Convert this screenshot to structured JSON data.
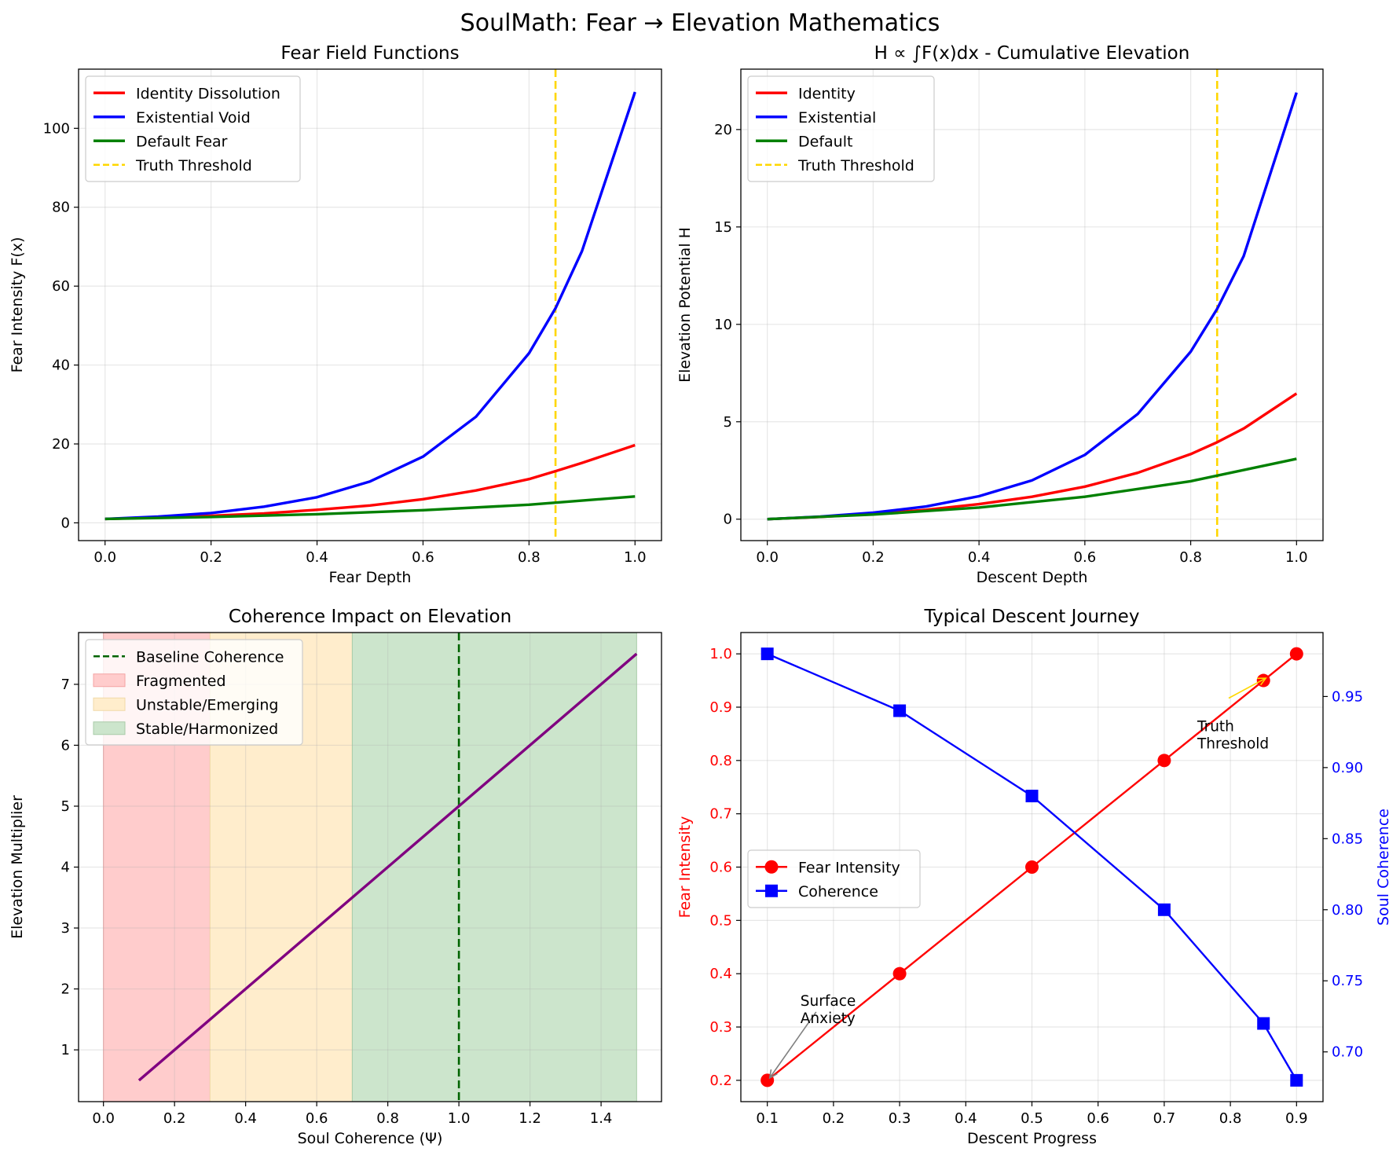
{
  "figure_title": "SoulMath: Fear → Elevation Mathematics",
  "chart_data": [
    {
      "type": "line",
      "title": "Fear Field Functions",
      "xlabel": "Fear Depth",
      "ylabel": "Fear Intensity F(x)",
      "xlim": [
        -0.05,
        1.05
      ],
      "ylim": [
        -4.5,
        115
      ],
      "xticks": [
        "0.0",
        "0.2",
        "0.4",
        "0.6",
        "0.8",
        "1.0"
      ],
      "yticks": [
        "0",
        "20",
        "40",
        "60",
        "80",
        "100"
      ],
      "grid": true,
      "legend_position": "upper-left",
      "series": [
        {
          "name": "Identity Dissolution",
          "color": "#ff0000",
          "x": [
            0,
            0.1,
            0.2,
            0.3,
            0.4,
            0.5,
            0.6,
            0.7,
            0.8,
            0.85,
            0.9,
            1.0
          ],
          "y": [
            1,
            1.35,
            1.8,
            2.4,
            3.3,
            4.4,
            6.0,
            8.2,
            11.1,
            13.1,
            15.2,
            19.7
          ]
        },
        {
          "name": "Existential Void",
          "color": "#0000ff",
          "x": [
            0,
            0.1,
            0.2,
            0.3,
            0.4,
            0.5,
            0.6,
            0.7,
            0.8,
            0.85,
            0.9,
            1.0
          ],
          "y": [
            1,
            1.6,
            2.5,
            4.1,
            6.5,
            10.5,
            16.8,
            26.9,
            43.0,
            54.4,
            68.9,
            109.2
          ]
        },
        {
          "name": "Default Fear",
          "color": "#008000",
          "x": [
            0,
            0.2,
            0.4,
            0.6,
            0.8,
            1.0
          ],
          "y": [
            1,
            1.5,
            2.2,
            3.2,
            4.6,
            6.7
          ]
        }
      ],
      "vline": {
        "name": "Truth Threshold",
        "x": 0.85,
        "color": "#ffd700"
      }
    },
    {
      "type": "line",
      "title": "H ∝ ∫F(x)dx - Cumulative Elevation",
      "xlabel": "Descent Depth",
      "ylabel": "Elevation Potential H",
      "xlim": [
        -0.05,
        1.05
      ],
      "ylim": [
        -1.1,
        23.1
      ],
      "xticks": [
        "0.0",
        "0.2",
        "0.4",
        "0.6",
        "0.8",
        "1.0"
      ],
      "yticks": [
        "0",
        "5",
        "10",
        "15",
        "20"
      ],
      "grid": true,
      "legend_position": "upper-left",
      "series": [
        {
          "name": "Identity",
          "color": "#ff0000",
          "x": [
            0,
            0.1,
            0.2,
            0.3,
            0.4,
            0.5,
            0.6,
            0.7,
            0.8,
            0.85,
            0.9,
            1.0
          ],
          "y": [
            0,
            0.12,
            0.27,
            0.48,
            0.77,
            1.15,
            1.67,
            2.38,
            3.34,
            3.95,
            4.65,
            6.45
          ]
        },
        {
          "name": "Existential",
          "color": "#0000ff",
          "x": [
            0,
            0.1,
            0.2,
            0.3,
            0.4,
            0.5,
            0.6,
            0.7,
            0.8,
            0.85,
            0.9,
            1.0
          ],
          "y": [
            0,
            0.13,
            0.33,
            0.65,
            1.18,
            1.99,
            3.3,
            5.4,
            8.6,
            10.8,
            13.5,
            21.9
          ]
        },
        {
          "name": "Default",
          "color": "#008000",
          "x": [
            0,
            0.2,
            0.4,
            0.6,
            0.8,
            1.0
          ],
          "y": [
            0,
            0.24,
            0.6,
            1.15,
            1.95,
            3.1
          ]
        }
      ],
      "vline": {
        "name": "Truth Threshold",
        "x": 0.85,
        "color": "#ffd700"
      }
    },
    {
      "type": "line",
      "title": "Coherence Impact on Elevation",
      "xlabel": "Soul Coherence (Ψ)",
      "ylabel": "Elevation Multiplier",
      "xlim": [
        -0.07,
        1.57
      ],
      "ylim": [
        0.15,
        7.85
      ],
      "xticks": [
        "0.0",
        "0.2",
        "0.4",
        "0.6",
        "0.8",
        "1.0",
        "1.2",
        "1.4"
      ],
      "yticks": [
        "1",
        "2",
        "3",
        "4",
        "5",
        "6",
        "7"
      ],
      "grid": true,
      "legend_position": "upper-left",
      "series": [
        {
          "name": "",
          "color": "#800080",
          "x": [
            0.1,
            1.5
          ],
          "y": [
            0.5,
            7.5
          ]
        }
      ],
      "vline": {
        "name": "Baseline Coherence",
        "x": 1.0,
        "color": "#006400"
      },
      "bands": [
        {
          "name": "Fragmented",
          "x": [
            0.0,
            0.3
          ],
          "fill": "#ffcccc",
          "edge": "#f4a3a3"
        },
        {
          "name": "Unstable/Emerging",
          "x": [
            0.3,
            0.7
          ],
          "fill": "#ffedcc",
          "edge": "#f0d9a8"
        },
        {
          "name": "Stable/Harmonized",
          "x": [
            0.7,
            1.5
          ],
          "fill": "#cce5cc",
          "edge": "#a8cca8"
        }
      ]
    },
    {
      "type": "line",
      "title": "Typical Descent Journey",
      "xlabel": "Descent Progress",
      "ylabel": "Fear Intensity",
      "y2label": "Soul Coherence",
      "xlim": [
        0.06,
        0.94
      ],
      "ylim": [
        0.16,
        1.04
      ],
      "y2lim": [
        0.665,
        0.995
      ],
      "xticks": [
        "0.1",
        "0.2",
        "0.3",
        "0.4",
        "0.5",
        "0.6",
        "0.7",
        "0.8",
        "0.9"
      ],
      "yticks": [
        "0.2",
        "0.3",
        "0.4",
        "0.5",
        "0.6",
        "0.7",
        "0.8",
        "0.9",
        "1.0"
      ],
      "y2ticks": [
        "0.70",
        "0.75",
        "0.80",
        "0.85",
        "0.90",
        "0.95"
      ],
      "grid": true,
      "legend_position": "center-left",
      "series": [
        {
          "name": "Fear Intensity",
          "color": "#ff0000",
          "marker": "circle",
          "axis": "left",
          "x": [
            0.1,
            0.3,
            0.5,
            0.7,
            0.85,
            0.9
          ],
          "y": [
            0.2,
            0.4,
            0.6,
            0.8,
            0.95,
            1.0
          ]
        },
        {
          "name": "Coherence",
          "color": "#0000ff",
          "marker": "square",
          "axis": "right",
          "x": [
            0.1,
            0.3,
            0.5,
            0.7,
            0.85,
            0.9
          ],
          "y": [
            0.98,
            0.94,
            0.88,
            0.8,
            0.72,
            0.68
          ]
        }
      ],
      "annotations": [
        {
          "lines": [
            "Surface",
            "Anxiety"
          ],
          "point": [
            0.1,
            0.2
          ],
          "text_at": [
            0.15,
            0.34
          ],
          "arrow_color": "#808080"
        },
        {
          "lines": [
            "Truth",
            "Threshold"
          ],
          "point": [
            0.85,
            0.95
          ],
          "text_at": [
            0.75,
            0.855
          ],
          "arrow_color": "#ffd700"
        }
      ]
    }
  ]
}
